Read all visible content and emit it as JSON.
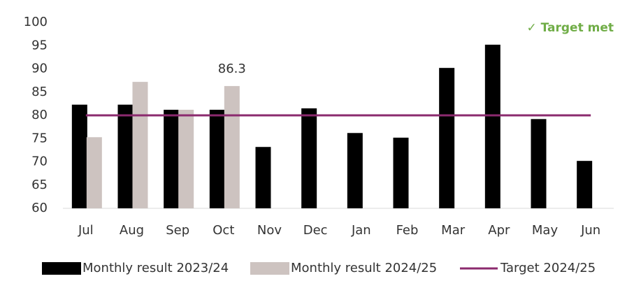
{
  "chart_data": {
    "type": "bar",
    "annotation": "✓ Target met",
    "categories": [
      "Jul",
      "Aug",
      "Sep",
      "Oct",
      "Nov",
      "Dec",
      "Jan",
      "Feb",
      "Mar",
      "Apr",
      "May",
      "Jun"
    ],
    "series": [
      {
        "name": "Monthly result 2023/24",
        "color": "#000000",
        "type": "bar",
        "values": [
          82.3,
          82.3,
          81.2,
          81.2,
          73.2,
          81.5,
          76.2,
          75.2,
          90.2,
          95.2,
          79.2,
          70.2
        ]
      },
      {
        "name": "Monthly result 2024/25",
        "color": "#cdc3c0",
        "type": "bar",
        "values": [
          75.3,
          87.2,
          81.2,
          86.3,
          null,
          null,
          null,
          null,
          null,
          null,
          null,
          null
        ],
        "value_labels": [
          null,
          null,
          null,
          "86.3",
          null,
          null,
          null,
          null,
          null,
          null,
          null,
          null
        ]
      },
      {
        "name": "Target 2024/25",
        "color": "#8b2a6e",
        "type": "line",
        "values": [
          80,
          80,
          80,
          80,
          80,
          80,
          80,
          80,
          80,
          80,
          80,
          80
        ]
      }
    ],
    "ylim": [
      60,
      100
    ],
    "yticks": [
      60,
      65,
      70,
      75,
      80,
      85,
      90,
      95,
      100
    ],
    "grid": false,
    "legend": "bottom"
  }
}
